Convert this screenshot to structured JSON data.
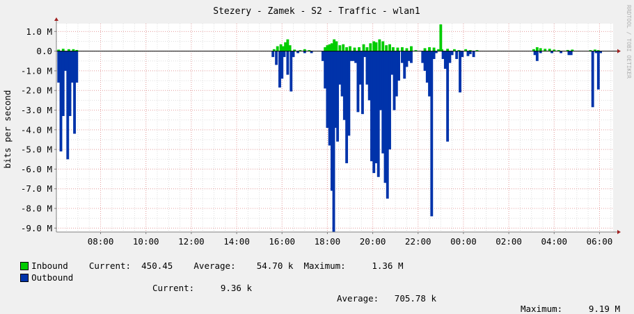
{
  "chart_data": {
    "type": "area",
    "title": "Stezery - Zamek - S2 - Traffic - wlan1",
    "ylabel": "bits per second",
    "watermark": "RRDTOOL / TOBI OETIKER",
    "ylim": [
      -9.2,
      1.4
    ],
    "y_ticks": [
      "1.0 M",
      "0.0",
      "-1.0 M",
      "-2.0 M",
      "-3.0 M",
      "-4.0 M",
      "-5.0 M",
      "-6.0 M",
      "-7.0 M",
      "-8.0 M",
      "-9.0 M"
    ],
    "y_tick_values": [
      1,
      0,
      -1,
      -2,
      -3,
      -4,
      -5,
      -6,
      -7,
      -8,
      -9
    ],
    "x_ticks": [
      "08:00",
      "10:00",
      "12:00",
      "14:00",
      "16:00",
      "18:00",
      "20:00",
      "22:00",
      "00:00",
      "02:00",
      "04:00",
      "06:00"
    ],
    "x_tick_hours": [
      8,
      10,
      12,
      14,
      16,
      18,
      20,
      22,
      24,
      26,
      28,
      30
    ],
    "x_range_hours": [
      6.05,
      30.6
    ],
    "colors": {
      "inbound": "#00cc00",
      "outbound": "#0033aa",
      "grid_major": "#e8a0a0",
      "grid_minor": "#dddddd",
      "background": "#ffffff",
      "canvas": "#f0f0f0"
    },
    "series": [
      {
        "name": "Inbound",
        "values": [
          [
            6.15,
            0.08
          ],
          [
            6.35,
            0.12
          ],
          [
            6.6,
            0.1
          ],
          [
            6.8,
            0.1
          ],
          [
            6.95,
            0.06
          ],
          [
            15.65,
            0.1
          ],
          [
            15.8,
            0.25
          ],
          [
            15.95,
            0.35
          ],
          [
            16.05,
            0.25
          ],
          [
            16.15,
            0.45
          ],
          [
            16.25,
            0.6
          ],
          [
            16.35,
            0.3
          ],
          [
            16.55,
            0.08
          ],
          [
            16.8,
            0.05
          ],
          [
            17.0,
            0.1
          ],
          [
            17.2,
            0.05
          ],
          [
            17.9,
            0.2
          ],
          [
            18.0,
            0.3
          ],
          [
            18.1,
            0.35
          ],
          [
            18.2,
            0.4
          ],
          [
            18.3,
            0.6
          ],
          [
            18.4,
            0.5
          ],
          [
            18.55,
            0.3
          ],
          [
            18.7,
            0.35
          ],
          [
            18.85,
            0.2
          ],
          [
            19.0,
            0.25
          ],
          [
            19.2,
            0.18
          ],
          [
            19.4,
            0.2
          ],
          [
            19.6,
            0.35
          ],
          [
            19.75,
            0.2
          ],
          [
            19.9,
            0.4
          ],
          [
            20.05,
            0.5
          ],
          [
            20.15,
            0.45
          ],
          [
            20.3,
            0.6
          ],
          [
            20.45,
            0.5
          ],
          [
            20.6,
            0.3
          ],
          [
            20.75,
            0.35
          ],
          [
            20.9,
            0.2
          ],
          [
            21.1,
            0.18
          ],
          [
            21.3,
            0.2
          ],
          [
            21.5,
            0.15
          ],
          [
            21.7,
            0.25
          ],
          [
            21.9,
            0.05
          ],
          [
            22.3,
            0.15
          ],
          [
            22.5,
            0.2
          ],
          [
            22.7,
            0.18
          ],
          [
            22.9,
            0.1
          ],
          [
            23.0,
            1.36
          ],
          [
            23.05,
            0.1
          ],
          [
            23.3,
            0.12
          ],
          [
            23.6,
            0.1
          ],
          [
            23.8,
            0.05
          ],
          [
            24.1,
            0.1
          ],
          [
            24.3,
            0.05
          ],
          [
            24.6,
            0.05
          ],
          [
            27.1,
            0.1
          ],
          [
            27.25,
            0.2
          ],
          [
            27.4,
            0.15
          ],
          [
            27.6,
            0.12
          ],
          [
            27.8,
            0.12
          ],
          [
            28.0,
            0.08
          ],
          [
            28.2,
            0.05
          ],
          [
            28.6,
            0.06
          ],
          [
            28.8,
            0.08
          ],
          [
            29.6,
            0.05
          ],
          [
            29.8,
            0.08
          ],
          [
            29.95,
            0.05
          ]
        ]
      },
      {
        "name": "Outbound",
        "values": [
          [
            6.15,
            -1.6
          ],
          [
            6.25,
            -5.1
          ],
          [
            6.35,
            -3.3
          ],
          [
            6.45,
            -1.0
          ],
          [
            6.55,
            -5.5
          ],
          [
            6.65,
            -3.3
          ],
          [
            6.75,
            -1.6
          ],
          [
            6.85,
            -4.2
          ],
          [
            6.95,
            -1.6
          ],
          [
            15.6,
            -0.3
          ],
          [
            15.75,
            -0.7
          ],
          [
            15.9,
            -1.85
          ],
          [
            16.0,
            -1.4
          ],
          [
            16.1,
            -0.3
          ],
          [
            16.25,
            -1.2
          ],
          [
            16.4,
            -2.05
          ],
          [
            16.5,
            -0.3
          ],
          [
            16.7,
            -0.1
          ],
          [
            17.0,
            -0.1
          ],
          [
            17.3,
            -0.1
          ],
          [
            17.8,
            -0.5
          ],
          [
            17.9,
            -1.9
          ],
          [
            18.0,
            -3.9
          ],
          [
            18.1,
            -4.8
          ],
          [
            18.2,
            -7.1
          ],
          [
            18.28,
            -9.2
          ],
          [
            18.35,
            -3.9
          ],
          [
            18.45,
            -4.6
          ],
          [
            18.55,
            -1.7
          ],
          [
            18.65,
            -2.3
          ],
          [
            18.75,
            -3.5
          ],
          [
            18.85,
            -5.7
          ],
          [
            18.95,
            -4.3
          ],
          [
            19.05,
            -0.5
          ],
          [
            19.15,
            -0.5
          ],
          [
            19.25,
            -0.6
          ],
          [
            19.35,
            -3.1
          ],
          [
            19.45,
            -1.7
          ],
          [
            19.55,
            -3.2
          ],
          [
            19.65,
            -0.3
          ],
          [
            19.75,
            -1.7
          ],
          [
            19.85,
            -2.5
          ],
          [
            19.95,
            -5.6
          ],
          [
            20.05,
            -6.2
          ],
          [
            20.15,
            -5.7
          ],
          [
            20.25,
            -6.4
          ],
          [
            20.35,
            -3.0
          ],
          [
            20.45,
            -5.2
          ],
          [
            20.55,
            -6.7
          ],
          [
            20.65,
            -7.5
          ],
          [
            20.75,
            -5.0
          ],
          [
            20.85,
            -1.2
          ],
          [
            20.95,
            -3.0
          ],
          [
            21.05,
            -2.3
          ],
          [
            21.15,
            -1.5
          ],
          [
            21.3,
            -0.6
          ],
          [
            21.4,
            -1.4
          ],
          [
            21.5,
            -0.8
          ],
          [
            21.6,
            -0.5
          ],
          [
            21.7,
            -0.6
          ],
          [
            22.2,
            -0.6
          ],
          [
            22.3,
            -1.0
          ],
          [
            22.4,
            -1.6
          ],
          [
            22.5,
            -2.3
          ],
          [
            22.6,
            -8.4
          ],
          [
            22.7,
            -0.4
          ],
          [
            22.8,
            -0.1
          ],
          [
            23.1,
            -0.4
          ],
          [
            23.2,
            -0.9
          ],
          [
            23.3,
            -4.6
          ],
          [
            23.4,
            -0.6
          ],
          [
            23.5,
            -0.2
          ],
          [
            23.7,
            -0.4
          ],
          [
            23.85,
            -2.1
          ],
          [
            23.95,
            -0.3
          ],
          [
            24.2,
            -0.25
          ],
          [
            24.3,
            -0.15
          ],
          [
            24.45,
            -0.3
          ],
          [
            27.15,
            -0.2
          ],
          [
            27.25,
            -0.5
          ],
          [
            27.4,
            -0.1
          ],
          [
            27.9,
            -0.1
          ],
          [
            28.3,
            -0.1
          ],
          [
            28.65,
            -0.2
          ],
          [
            28.75,
            -0.2
          ],
          [
            29.7,
            -2.85
          ],
          [
            29.85,
            -0.1
          ],
          [
            29.95,
            -1.95
          ],
          [
            30.05,
            -0.1
          ]
        ]
      }
    ]
  },
  "legend": {
    "inbound": {
      "label": "Inbound",
      "current_label": "Current:",
      "current": "450.45",
      "average_label": "Average:",
      "average": "54.70 k",
      "maximum_label": "Maximum:",
      "maximum": "1.36 M"
    },
    "outbound": {
      "label": "Outbound",
      "current_label": "Current:",
      "current": "9.36 k",
      "average_label": "Average:",
      "average": "705.78 k",
      "maximum_label": "Maximum:",
      "maximum": "9.19 M"
    }
  }
}
